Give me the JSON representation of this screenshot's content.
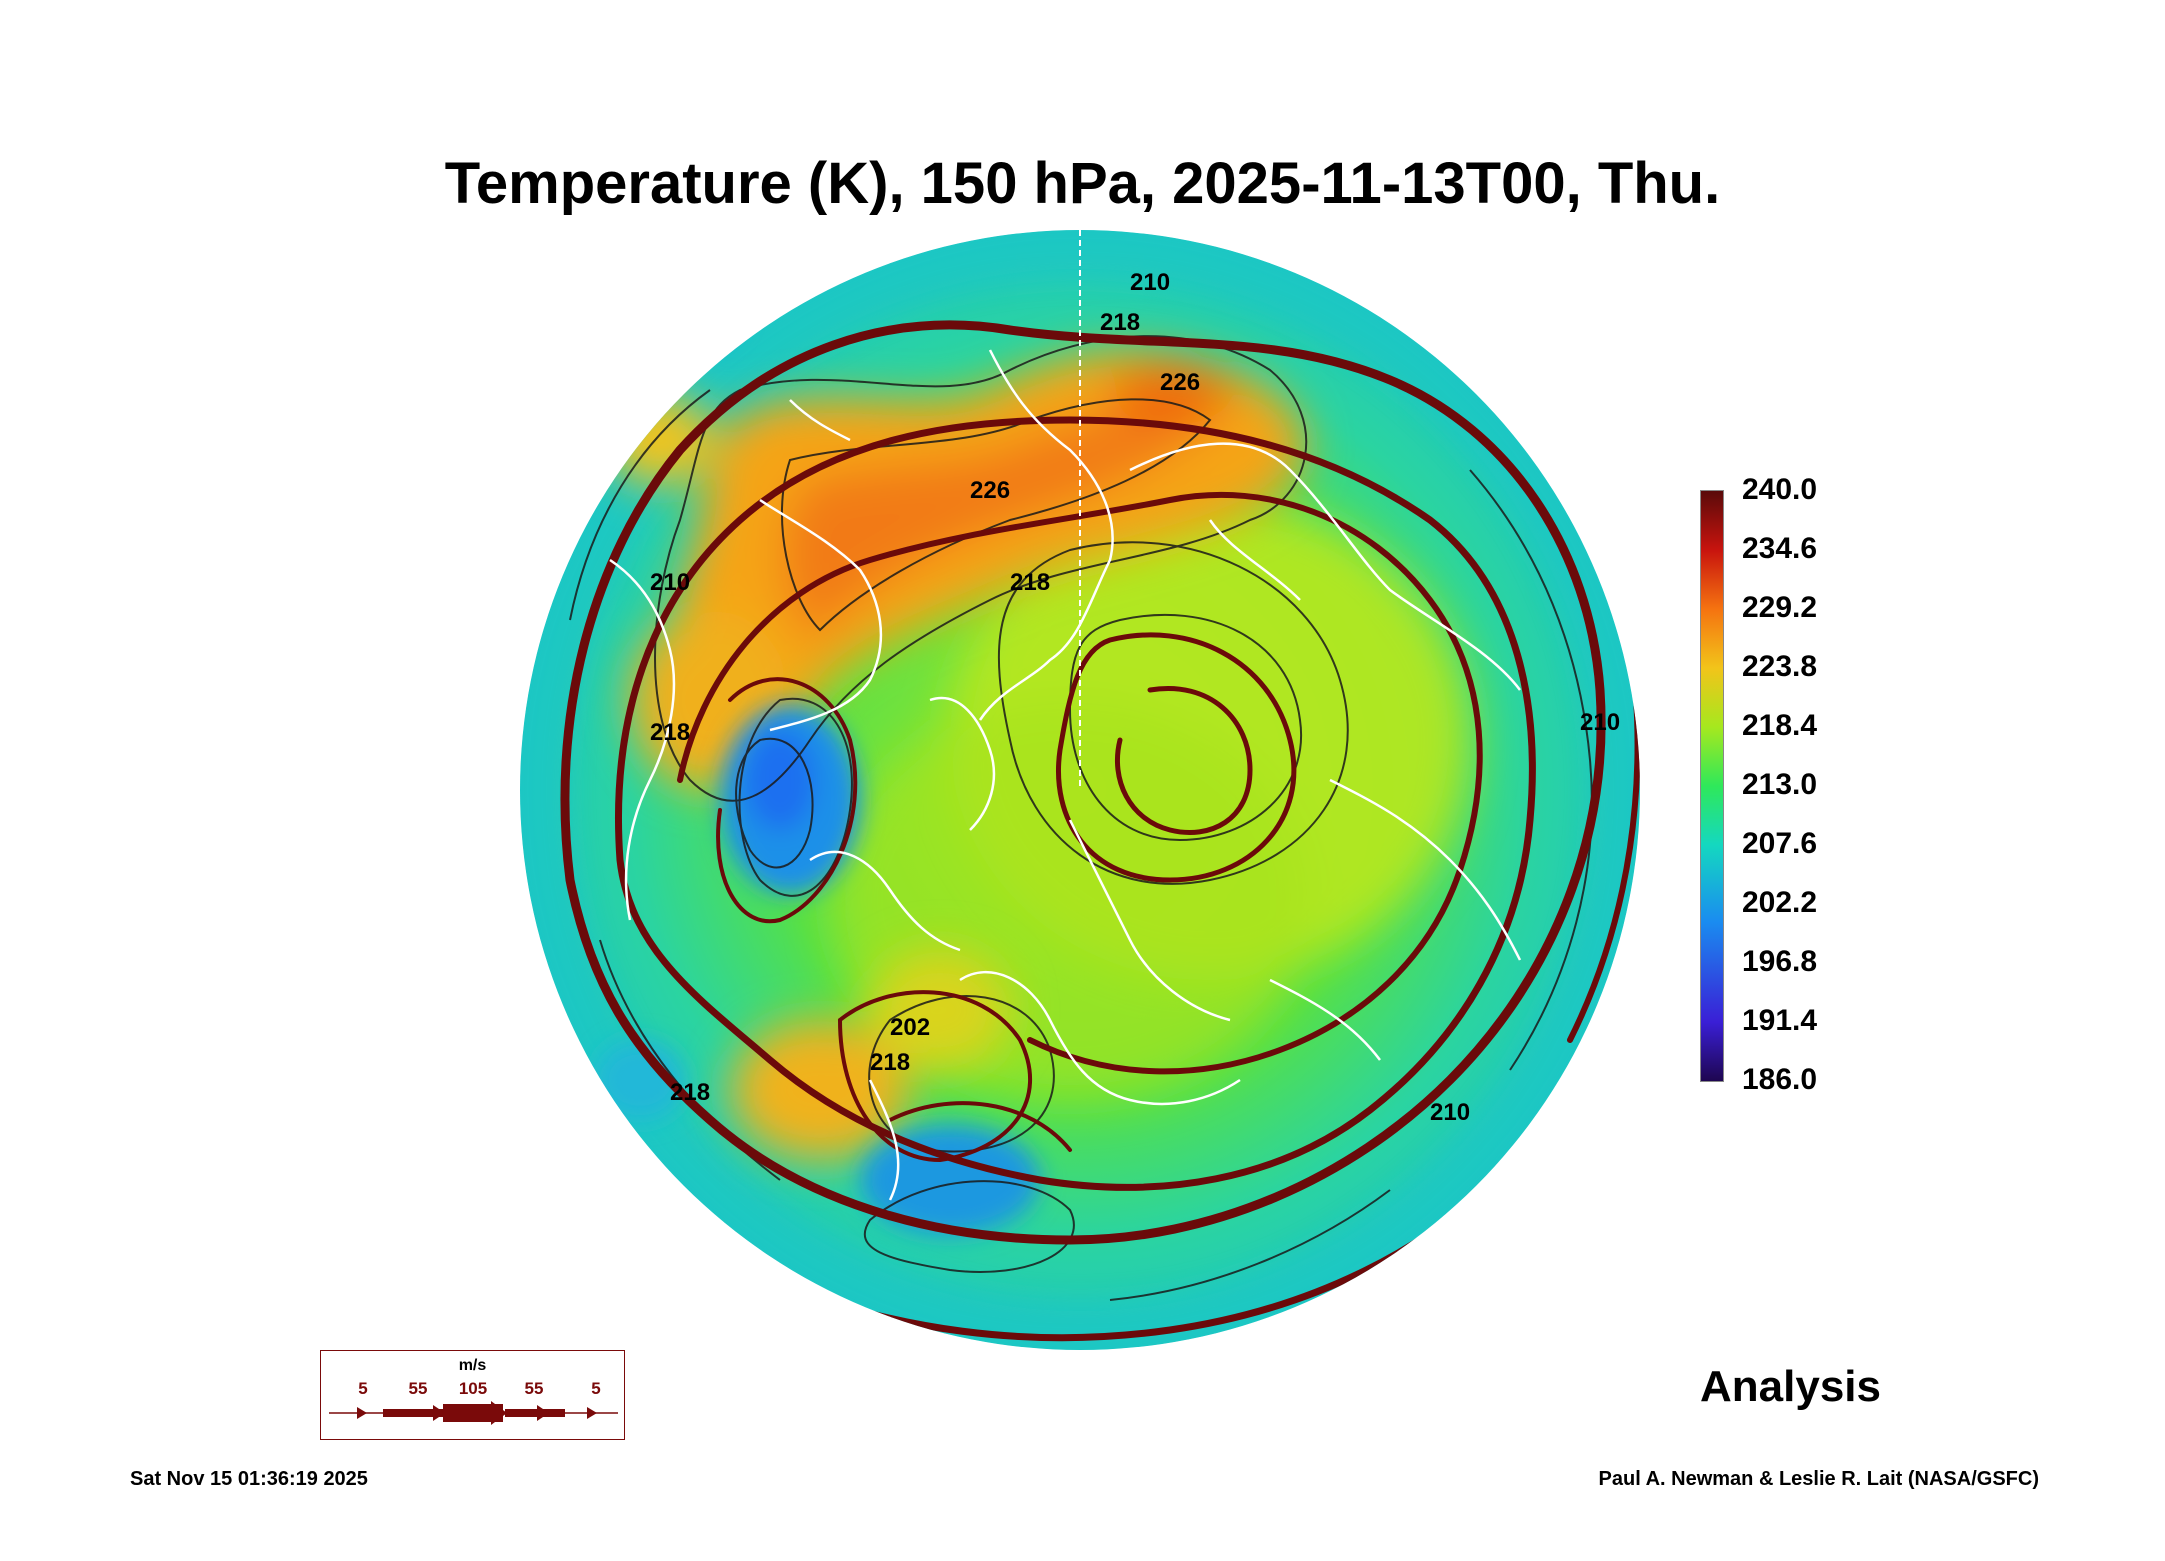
{
  "title": "Temperature (K), 150 hPa, 2025-11-13T00, Thu.",
  "colorbar": {
    "labels": [
      "240.0",
      "234.6",
      "229.2",
      "223.8",
      "218.4",
      "213.0",
      "207.6",
      "202.2",
      "196.8",
      "191.4",
      "186.0"
    ]
  },
  "contour_labels": [
    "226",
    "226",
    "218",
    "218",
    "218",
    "218",
    "218",
    "210",
    "210",
    "210",
    "210",
    "202"
  ],
  "wind_legend": {
    "units": "m/s",
    "speeds": [
      "5",
      "55",
      "105",
      "55",
      "5"
    ]
  },
  "analysis_label": "Analysis",
  "timestamp": "Sat Nov 15 01:36:19 2025",
  "credit": "Paul A. Newman & Leslie R. Lait (NASA/GSFC)",
  "colors": {
    "streamline": "#6b0a0a",
    "coastline": "#ffffff",
    "contour": "#1a1a1a"
  }
}
